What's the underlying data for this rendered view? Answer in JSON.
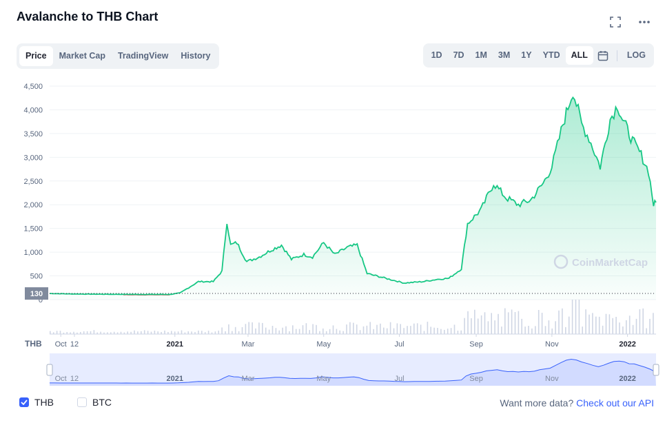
{
  "title": "Avalanche to THB Chart",
  "tabs": [
    "Price",
    "Market Cap",
    "TradingView",
    "History"
  ],
  "ranges": [
    "1D",
    "7D",
    "1M",
    "3M",
    "1Y",
    "YTD",
    "ALL"
  ],
  "log_label": "LOG",
  "watermark": "CoinMarketCap",
  "currency_axis_label": "THB",
  "current_price_tag": "130",
  "legend": {
    "thb": "THB",
    "btc": "BTC"
  },
  "more_data": {
    "text": "Want more data?",
    "link": "Check out our API"
  },
  "colors": {
    "line": "#16c784",
    "down": "#ea3943",
    "accent": "#3861fb",
    "nav": "#3861fb"
  },
  "chart_data": {
    "type": "area",
    "title": "Avalanche to THB Chart",
    "ylabel": "THB",
    "yticks": [
      0,
      500,
      1000,
      1500,
      2000,
      2500,
      3000,
      3500,
      4000,
      4500
    ],
    "ytick_labels": [
      "0",
      "500",
      "1,000",
      "1,500",
      "2,000",
      "2,500",
      "3,000",
      "3,500",
      "4,000",
      "4,500"
    ],
    "ylim": [
      0,
      4500
    ],
    "xticks": [
      "Oct",
      "12",
      "2021",
      "Mar",
      "May",
      "Jul",
      "Sep",
      "Nov",
      "2022"
    ],
    "x_range": [
      "2020-09-22",
      "2022-01-24"
    ],
    "grid": true,
    "series": [
      {
        "values": [
          {
            "x": "2020-09-22",
            "y": 130
          },
          {
            "x": "2020-10-10",
            "y": 120
          },
          {
            "x": "2020-11-01",
            "y": 115
          },
          {
            "x": "2020-12-01",
            "y": 110
          },
          {
            "x": "2020-12-28",
            "y": 110
          },
          {
            "x": "2021-01-05",
            "y": 140
          },
          {
            "x": "2021-01-12",
            "y": 250
          },
          {
            "x": "2021-01-20",
            "y": 380
          },
          {
            "x": "2021-02-01",
            "y": 380
          },
          {
            "x": "2021-02-08",
            "y": 600
          },
          {
            "x": "2021-02-12",
            "y": 1650
          },
          {
            "x": "2021-02-15",
            "y": 1150
          },
          {
            "x": "2021-02-20",
            "y": 1200
          },
          {
            "x": "2021-02-28",
            "y": 800
          },
          {
            "x": "2021-03-10",
            "y": 900
          },
          {
            "x": "2021-03-20",
            "y": 1050
          },
          {
            "x": "2021-03-28",
            "y": 1150
          },
          {
            "x": "2021-04-05",
            "y": 850
          },
          {
            "x": "2021-04-15",
            "y": 950
          },
          {
            "x": "2021-04-22",
            "y": 900
          },
          {
            "x": "2021-05-01",
            "y": 1200
          },
          {
            "x": "2021-05-10",
            "y": 950
          },
          {
            "x": "2021-05-20",
            "y": 1100
          },
          {
            "x": "2021-05-28",
            "y": 1150
          },
          {
            "x": "2021-06-05",
            "y": 550
          },
          {
            "x": "2021-06-20",
            "y": 450
          },
          {
            "x": "2021-07-05",
            "y": 350
          },
          {
            "x": "2021-07-20",
            "y": 380
          },
          {
            "x": "2021-08-01",
            "y": 430
          },
          {
            "x": "2021-08-10",
            "y": 450
          },
          {
            "x": "2021-08-20",
            "y": 650
          },
          {
            "x": "2021-08-25",
            "y": 1600
          },
          {
            "x": "2021-09-05",
            "y": 1900
          },
          {
            "x": "2021-09-15",
            "y": 2450
          },
          {
            "x": "2021-09-25",
            "y": 2150
          },
          {
            "x": "2021-10-05",
            "y": 2000
          },
          {
            "x": "2021-10-15",
            "y": 2100
          },
          {
            "x": "2021-10-25",
            "y": 2450
          },
          {
            "x": "2021-11-01",
            "y": 2800
          },
          {
            "x": "2021-11-10",
            "y": 3700
          },
          {
            "x": "2021-11-18",
            "y": 4400
          },
          {
            "x": "2021-11-25",
            "y": 3700
          },
          {
            "x": "2021-12-01",
            "y": 3400
          },
          {
            "x": "2021-12-10",
            "y": 2800
          },
          {
            "x": "2021-12-18",
            "y": 3800
          },
          {
            "x": "2021-12-24",
            "y": 4100
          },
          {
            "x": "2021-12-28",
            "y": 3800
          },
          {
            "x": "2022-01-05",
            "y": 3350
          },
          {
            "x": "2022-01-12",
            "y": 3050
          },
          {
            "x": "2022-01-18",
            "y": 2700
          },
          {
            "x": "2022-01-22",
            "y": 2000
          },
          {
            "x": "2022-01-24",
            "y": 2050
          }
        ]
      }
    ]
  }
}
